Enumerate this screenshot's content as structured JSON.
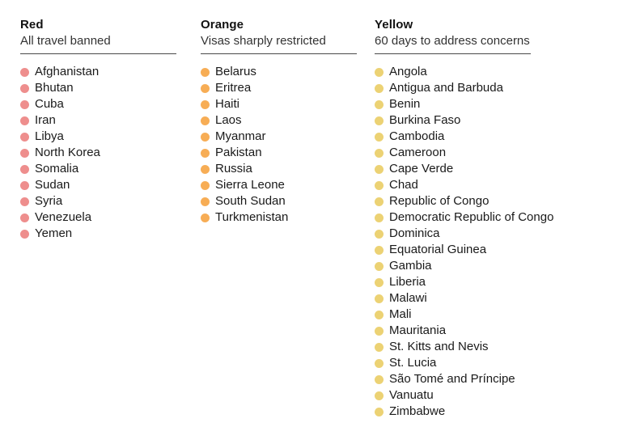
{
  "chart_data": {
    "type": "table",
    "title": "",
    "legend_position": "none",
    "groups": [
      {
        "id": "red",
        "label": "Red",
        "description": "All travel banned",
        "dot_color": "#ee8e8d",
        "count": 11,
        "countries": [
          "Afghanistan",
          "Bhutan",
          "Cuba",
          "Iran",
          "Libya",
          "North Korea",
          "Somalia",
          "Sudan",
          "Syria",
          "Venezuela",
          "Yemen"
        ]
      },
      {
        "id": "orange",
        "label": "Orange",
        "description": "Visas sharply restricted",
        "dot_color": "#f7ad55",
        "count": 10,
        "countries": [
          "Belarus",
          "Eritrea",
          "Haiti",
          "Laos",
          "Myanmar",
          "Pakistan",
          "Russia",
          "Sierra Leone",
          "South Sudan",
          "Turkmenistan"
        ]
      },
      {
        "id": "yellow",
        "label": "Yellow",
        "description": "60 days to address concerns",
        "dot_color": "#ecd274",
        "count": 22,
        "countries": [
          "Angola",
          "Antigua and Barbuda",
          "Benin",
          "Burkina Faso",
          "Cambodia",
          "Cameroon",
          "Cape Verde",
          "Chad",
          "Republic of Congo",
          "Democratic Republic of Congo",
          "Dominica",
          "Equatorial Guinea",
          "Gambia",
          "Liberia",
          "Malawi",
          "Mali",
          "Mauritania",
          "St. Kitts and Nevis",
          "St. Lucia",
          "São Tomé and Príncipe",
          "Vanuatu",
          "Zimbabwe"
        ]
      }
    ]
  },
  "styles": {
    "background": "#ffffff",
    "text_color": "#121212",
    "subtitle_color": "#333333",
    "rule_color": "#4a4a4a"
  }
}
